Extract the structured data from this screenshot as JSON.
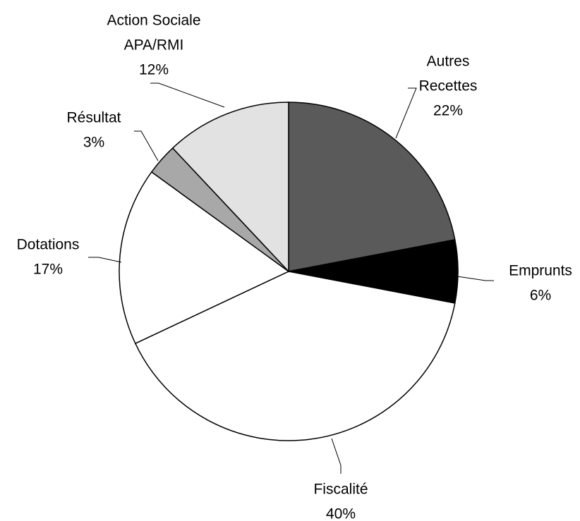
{
  "chart_data": {
    "type": "pie",
    "categories": [
      [
        "Autres",
        "Recettes"
      ],
      [
        "Emprunts"
      ],
      [
        "Fiscalité"
      ],
      [
        "Dotations"
      ],
      [
        "Résultat"
      ],
      [
        "Action Sociale",
        "APA/RMI"
      ]
    ],
    "values": [
      22,
      6,
      40,
      17,
      3,
      12
    ],
    "value_labels": [
      "22%",
      "6%",
      "40%",
      "17%",
      "3%",
      "12%"
    ],
    "colors": [
      "#5a5a5a",
      "#000000",
      "#ffffff",
      "#ffffff",
      "#a8a8a8",
      "#e2e2e2"
    ]
  }
}
